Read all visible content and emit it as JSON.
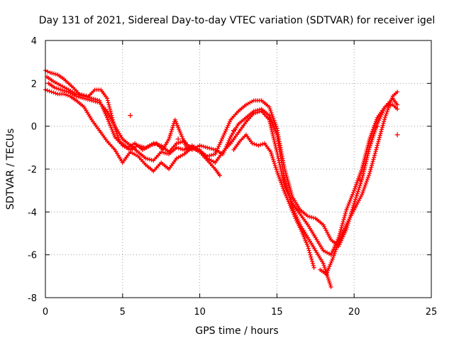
{
  "chart_data": {
    "type": "scatter",
    "title": "Day 131 of 2021, Sidereal Day-to-day VTEC variation (SDTVAR) for receiver igel",
    "xlabel": "GPS time / hours",
    "ylabel": "SDTVAR / TECUs",
    "xlim": [
      0,
      25
    ],
    "ylim": [
      -8,
      4
    ],
    "xticks": [
      0,
      5,
      10,
      15,
      20,
      25
    ],
    "yticks": [
      -8,
      -6,
      -4,
      -2,
      0,
      2,
      4
    ],
    "grid": true,
    "marker": "+",
    "color": "#ff0000",
    "series": [
      {
        "x": [
          0.0,
          0.3,
          0.8,
          1.2,
          1.8,
          2.2,
          2.8,
          3.2,
          3.6,
          4.0,
          4.4,
          4.8,
          5.3,
          5.8,
          6.3,
          6.8,
          7.2,
          7.6,
          8.0,
          8.4,
          8.8,
          9.2,
          9.6,
          10.0,
          10.5,
          11.0,
          11.5,
          12.0,
          12.5,
          13.0,
          13.5,
          14.0,
          14.5,
          15.0,
          15.5,
          16.0,
          16.5,
          17.0,
          17.5,
          18.0,
          18.5,
          19.0,
          19.5,
          20.0,
          20.5,
          21.0,
          21.5,
          22.0,
          22.5,
          22.8
        ],
        "y": [
          2.6,
          2.5,
          2.4,
          2.2,
          1.8,
          1.5,
          1.4,
          1.7,
          1.7,
          1.3,
          0.2,
          -0.7,
          -1.0,
          -0.8,
          -1.1,
          -0.9,
          -0.8,
          -1.1,
          -0.6,
          0.3,
          -0.4,
          -1.1,
          -1.0,
          -1.2,
          -1.4,
          -1.3,
          -0.5,
          0.3,
          0.7,
          1.0,
          1.2,
          1.2,
          0.9,
          -0.1,
          -2.0,
          -3.3,
          -3.9,
          -4.2,
          -4.3,
          -4.6,
          -5.3,
          -5.6,
          -4.8,
          -3.6,
          -2.5,
          -1.0,
          0.1,
          0.9,
          1.3,
          1.0
        ]
      },
      {
        "x": [
          0.2,
          0.6,
          1.0,
          1.5,
          2.0,
          2.5,
          3.0,
          3.5,
          4.0,
          4.5,
          5.0,
          5.5,
          6.0,
          6.5,
          7.0,
          7.5,
          8.0,
          8.5,
          9.0,
          9.5,
          10.0,
          10.5,
          11.0,
          11.5,
          12.0,
          12.5,
          13.0,
          13.5,
          14.0,
          14.5,
          15.0,
          15.5,
          16.0,
          16.5,
          17.0,
          17.5,
          18.0,
          18.5,
          19.0,
          19.5,
          20.0,
          20.5,
          21.0,
          21.5,
          22.0,
          22.5,
          22.8
        ],
        "y": [
          2.0,
          1.8,
          1.7,
          1.6,
          1.4,
          1.3,
          1.2,
          1.1,
          0.7,
          0.0,
          -0.6,
          -0.9,
          -1.2,
          -1.5,
          -1.6,
          -1.2,
          -1.3,
          -1.0,
          -1.1,
          -0.9,
          -1.1,
          -1.5,
          -1.7,
          -1.2,
          -0.8,
          -0.3,
          0.2,
          0.6,
          0.7,
          0.3,
          -1.2,
          -2.8,
          -3.6,
          -4.1,
          -4.6,
          -5.2,
          -5.8,
          -6.0,
          -5.2,
          -3.9,
          -3.0,
          -2.0,
          -0.6,
          0.4,
          0.9,
          1.0,
          0.8
        ]
      },
      {
        "x": [
          0.1,
          0.5,
          1.0,
          1.5,
          2.0,
          2.5,
          3.0,
          3.5,
          4.0,
          4.5,
          5.0,
          5.5,
          6.0,
          6.5,
          7.0,
          7.5,
          8.0,
          8.5,
          9.0,
          9.5,
          10.0,
          10.5,
          11.0,
          11.5,
          12.0,
          12.5,
          13.0,
          13.5,
          14.0,
          14.5,
          15.0,
          15.5,
          16.0,
          16.5,
          17.0,
          17.5,
          18.0,
          18.5
        ],
        "y": [
          2.3,
          2.1,
          1.9,
          1.7,
          1.5,
          1.4,
          1.3,
          1.2,
          0.4,
          -0.5,
          -0.9,
          -1.1,
          -0.9,
          -1.0,
          -0.8,
          -0.9,
          -1.2,
          -0.8,
          -0.7,
          -1.1,
          -0.9,
          -1.0,
          -1.1,
          -1.3,
          -0.5,
          0.1,
          0.4,
          0.7,
          0.8,
          0.5,
          -0.4,
          -2.5,
          -3.8,
          -4.6,
          -5.2,
          -5.8,
          -6.4,
          -7.5
        ]
      },
      {
        "x": [
          0.0,
          0.4,
          0.8,
          1.2,
          1.6,
          2.0,
          2.5,
          3.0,
          3.5,
          4.0,
          4.5,
          5.0,
          5.5,
          6.0,
          6.5,
          7.0,
          7.5,
          8.0,
          8.5,
          9.0,
          9.5,
          10.0,
          10.5,
          11.0,
          11.3
        ],
        "y": [
          1.7,
          1.6,
          1.5,
          1.5,
          1.4,
          1.2,
          0.9,
          0.3,
          -0.2,
          -0.7,
          -1.1,
          -1.7,
          -1.2,
          -1.4,
          -1.8,
          -2.1,
          -1.7,
          -2.0,
          -1.5,
          -1.3,
          -1.0,
          -1.2,
          -1.6,
          -2.0,
          -2.3
        ]
      },
      {
        "x": [
          12.2,
          12.6,
          13.0,
          13.4,
          13.8,
          14.2,
          14.6,
          15.0,
          15.4,
          15.8,
          16.2,
          16.6,
          17.0,
          17.4
        ],
        "y": [
          -1.1,
          -0.7,
          -0.4,
          -0.8,
          -0.9,
          -0.8,
          -1.2,
          -2.1,
          -2.9,
          -3.6,
          -4.3,
          -4.9,
          -5.6,
          -6.6
        ]
      },
      {
        "x": [
          17.8,
          18.2,
          18.6,
          19.0,
          19.5,
          20.0,
          20.5,
          21.0,
          21.5,
          22.0,
          22.5,
          22.8
        ],
        "y": [
          -6.7,
          -6.9,
          -6.2,
          -5.4,
          -4.6,
          -3.9,
          -3.2,
          -2.2,
          -0.9,
          0.4,
          1.4,
          1.6
        ]
      }
    ],
    "scatter_points": [
      {
        "x": 5.5,
        "y": 0.5
      },
      {
        "x": 8.6,
        "y": -0.6
      },
      {
        "x": 12.2,
        "y": -0.2
      },
      {
        "x": 20.4,
        "y": -2.5
      },
      {
        "x": 21.5,
        "y": 0.0
      },
      {
        "x": 22.8,
        "y": -0.4
      }
    ]
  }
}
